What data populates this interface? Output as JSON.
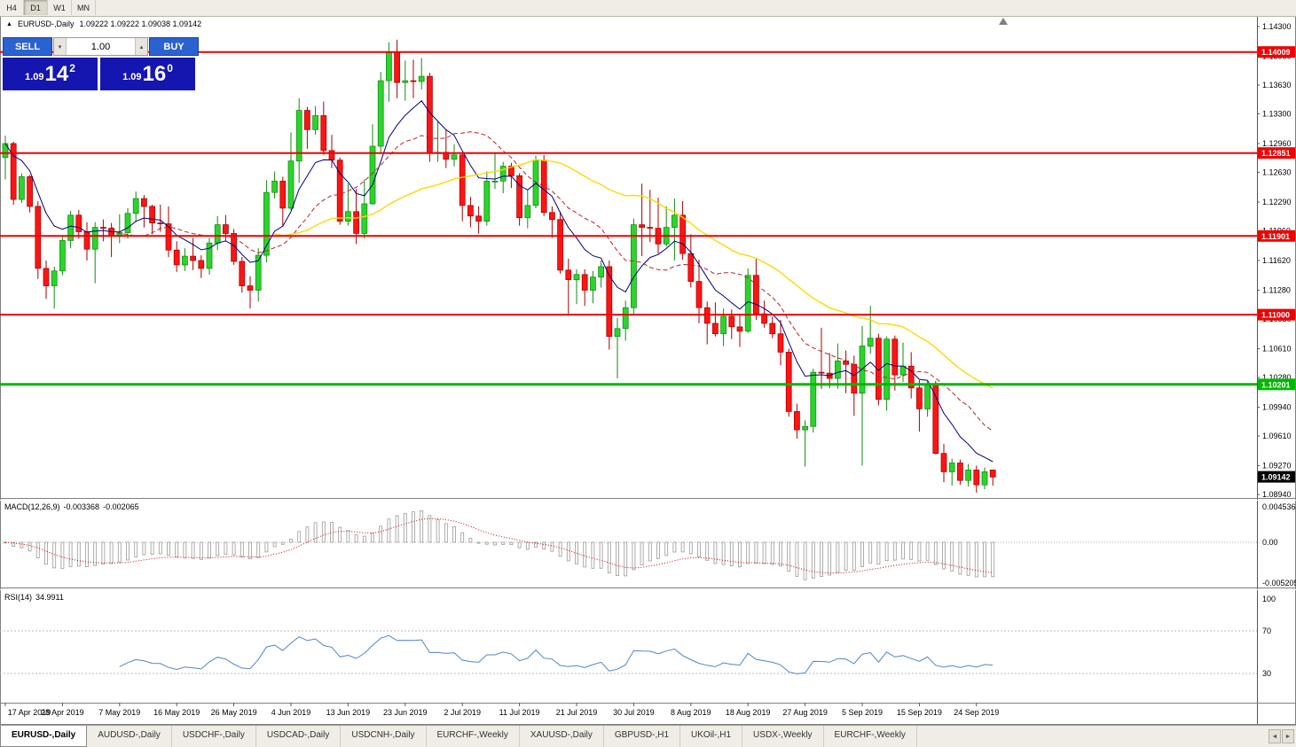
{
  "toolbar": {
    "timeframes": [
      "H4",
      "D1",
      "W1",
      "MN"
    ],
    "active": "D1"
  },
  "chart": {
    "symbol_title": "EURUSD-,Daily",
    "ohlc_text": "1.09222 1.09222 1.09038 1.09142"
  },
  "trade_panel": {
    "sell_label": "SELL",
    "buy_label": "BUY",
    "volume": "1.00",
    "sell_price": {
      "base": "1.09",
      "pips": "14",
      "frac": "2"
    },
    "buy_price": {
      "base": "1.09",
      "pips": "16",
      "frac": "0"
    },
    "icons": {
      "volume_down": "▾",
      "volume_up": "▴"
    }
  },
  "macd_panel": {
    "name": "MACD(12,26,9)",
    "main_value": "-0.003368",
    "signal_value": "-0.002065",
    "axis": [
      {
        "label": "0.004536",
        "value": 0.004536
      },
      {
        "label": "0.00",
        "value": 0
      },
      {
        "label": "-0.005205",
        "value": -0.005205
      }
    ]
  },
  "rsi_panel": {
    "name": "RSI(14)",
    "value": "34.9911",
    "axis": [
      {
        "label": "100",
        "value": 100
      },
      {
        "label": "70",
        "value": 70
      },
      {
        "label": "30",
        "value": 30
      }
    ],
    "levels": [
      70,
      30
    ]
  },
  "tabs": {
    "items": [
      "EURUSD-,Daily",
      "AUDUSD-,Daily",
      "USDCHF-,Daily",
      "USDCAD-,Daily",
      "USDCNH-,Daily",
      "EURCHF-,Weekly",
      "XAUUSD-,Daily",
      "GBPUSD-,H1",
      "UKOil-,H1",
      "USDX-,Weekly",
      "EURCHF-,Weekly"
    ],
    "active_index": 0,
    "scroll_icons": [
      "◄",
      "►"
    ]
  },
  "chart_data": {
    "type": "candlestick",
    "symbol": "EURUSD-",
    "timeframe": "Daily",
    "ylim": [
      1.0894,
      1.143
    ],
    "y_ticks": [
      "1.14300",
      "1.13960",
      "1.13630",
      "1.13300",
      "1.12960",
      "1.12630",
      "1.12290",
      "1.11960",
      "1.11620",
      "1.11280",
      "1.10950",
      "1.10610",
      "1.10280",
      "1.09940",
      "1.09610",
      "1.09270",
      "1.08940"
    ],
    "x_labels": [
      "17 Apr 2019",
      "28 Apr 2019",
      "7 May 2019",
      "16 May 2019",
      "26 May 2019",
      "4 Jun 2019",
      "13 Jun 2019",
      "23 Jun 2019",
      "2 Jul 2019",
      "11 Jul 2019",
      "21 Jul 2019",
      "30 Jul 2019",
      "8 Aug 2019",
      "18 Aug 2019",
      "27 Aug 2019",
      "5 Sep 2019",
      "15 Sep 2019",
      "24 Sep 2019"
    ],
    "x_label_indices": [
      0,
      7,
      14,
      21,
      28,
      35,
      42,
      49,
      56,
      63,
      70,
      77,
      84,
      91,
      98,
      105,
      112,
      119
    ],
    "hlines": [
      {
        "price": 1.14009,
        "label": "1.14009",
        "color": "#f00000",
        "width": 2
      },
      {
        "price": 1.12851,
        "label": "1.12851",
        "color": "#f00000",
        "width": 2
      },
      {
        "price": 1.11901,
        "label": "1.11901",
        "color": "#f00000",
        "width": 2
      },
      {
        "price": 1.11,
        "label": "1.11000",
        "color": "#f00000",
        "width": 2
      },
      {
        "price": 1.10201,
        "label": "1.10201",
        "color": "#00b800",
        "width": 3
      }
    ],
    "last_price": {
      "value": 1.09142,
      "label": "1.09142"
    },
    "colors": {
      "up": "#2ad52a",
      "up_border": "#128a12",
      "down": "#ff1414",
      "down_border": "#a80000",
      "ma_fast": "#000080",
      "ma_mid": "#c02020",
      "ma_slow": "#ffd800",
      "macd_hist": "#999999",
      "macd_signal": "#d40000",
      "rsi": "#4f86c6"
    },
    "moving_averages": [
      {
        "period": 8,
        "type": "ema",
        "role": "fast"
      },
      {
        "period": 14,
        "type": "sma",
        "role": "mid"
      },
      {
        "period": 34,
        "type": "sma",
        "role": "slow"
      }
    ],
    "macd_params": [
      12,
      26,
      9
    ],
    "rsi_period": 14,
    "ohlc": [
      [
        1.128,
        1.1305,
        1.1255,
        1.1296
      ],
      [
        1.1296,
        1.1298,
        1.1226,
        1.1232
      ],
      [
        1.1232,
        1.1262,
        1.1228,
        1.1258
      ],
      [
        1.1258,
        1.126,
        1.1217,
        1.1224
      ],
      [
        1.1224,
        1.123,
        1.1141,
        1.1153
      ],
      [
        1.1153,
        1.1162,
        1.1118,
        1.1133
      ],
      [
        1.1133,
        1.1155,
        1.1107,
        1.115
      ],
      [
        1.115,
        1.119,
        1.1145,
        1.1185
      ],
      [
        1.1185,
        1.1219,
        1.1176,
        1.1214
      ],
      [
        1.1214,
        1.122,
        1.1187,
        1.1195
      ],
      [
        1.1195,
        1.1206,
        1.1162,
        1.1175
      ],
      [
        1.1175,
        1.1206,
        1.1136,
        1.12
      ],
      [
        1.12,
        1.1209,
        1.1184,
        1.1199
      ],
      [
        1.1199,
        1.1205,
        1.1166,
        1.119
      ],
      [
        1.119,
        1.1215,
        1.1182,
        1.1194
      ],
      [
        1.1194,
        1.1222,
        1.1187,
        1.1216
      ],
      [
        1.1216,
        1.1241,
        1.1206,
        1.1233
      ],
      [
        1.1233,
        1.1237,
        1.12,
        1.1224
      ],
      [
        1.1224,
        1.1226,
        1.1192,
        1.1205
      ],
      [
        1.1205,
        1.1226,
        1.1195,
        1.1204
      ],
      [
        1.1204,
        1.1224,
        1.1166,
        1.1174
      ],
      [
        1.1174,
        1.1184,
        1.1149,
        1.1157
      ],
      [
        1.1157,
        1.1176,
        1.115,
        1.1167
      ],
      [
        1.1167,
        1.1188,
        1.1151,
        1.1162
      ],
      [
        1.1162,
        1.1168,
        1.1142,
        1.1153
      ],
      [
        1.1153,
        1.1188,
        1.1146,
        1.1182
      ],
      [
        1.1182,
        1.1213,
        1.1174,
        1.1203
      ],
      [
        1.1203,
        1.1214,
        1.1184,
        1.1193
      ],
      [
        1.1193,
        1.1198,
        1.1157,
        1.1161
      ],
      [
        1.1161,
        1.1166,
        1.1125,
        1.1133
      ],
      [
        1.1133,
        1.1144,
        1.1107,
        1.1128
      ],
      [
        1.1128,
        1.1176,
        1.1115,
        1.1168
      ],
      [
        1.1168,
        1.1254,
        1.116,
        1.124
      ],
      [
        1.124,
        1.1264,
        1.1233,
        1.1253
      ],
      [
        1.1253,
        1.1258,
        1.1201,
        1.1222
      ],
      [
        1.1222,
        1.1309,
        1.122,
        1.1276
      ],
      [
        1.1276,
        1.1348,
        1.1251,
        1.1334
      ],
      [
        1.1334,
        1.1338,
        1.129,
        1.1312
      ],
      [
        1.1312,
        1.1339,
        1.1306,
        1.1328
      ],
      [
        1.1328,
        1.1344,
        1.1283,
        1.1288
      ],
      [
        1.1288,
        1.1306,
        1.1268,
        1.1277
      ],
      [
        1.1277,
        1.128,
        1.1203,
        1.1207
      ],
      [
        1.1207,
        1.125,
        1.1202,
        1.1218
      ],
      [
        1.1218,
        1.1244,
        1.1181,
        1.1193
      ],
      [
        1.1193,
        1.1255,
        1.1187,
        1.1227
      ],
      [
        1.1227,
        1.1318,
        1.1226,
        1.1293
      ],
      [
        1.1293,
        1.1378,
        1.1285,
        1.1368
      ],
      [
        1.1368,
        1.1412,
        1.1344,
        1.14
      ],
      [
        1.14,
        1.1415,
        1.1348,
        1.1366
      ],
      [
        1.1366,
        1.1391,
        1.1345,
        1.1368
      ],
      [
        1.1368,
        1.1392,
        1.1348,
        1.1367
      ],
      [
        1.1367,
        1.1394,
        1.1358,
        1.1373
      ],
      [
        1.1373,
        1.1377,
        1.1275,
        1.1285
      ],
      [
        1.1285,
        1.1322,
        1.1275,
        1.1286
      ],
      [
        1.1286,
        1.1312,
        1.1268,
        1.1278
      ],
      [
        1.1278,
        1.1295,
        1.127,
        1.1283
      ],
      [
        1.1283,
        1.1286,
        1.1207,
        1.1225
      ],
      [
        1.1225,
        1.1235,
        1.12,
        1.1213
      ],
      [
        1.1213,
        1.1224,
        1.1193,
        1.1207
      ],
      [
        1.1207,
        1.1264,
        1.1202,
        1.1253
      ],
      [
        1.1253,
        1.1285,
        1.1244,
        1.1253
      ],
      [
        1.1253,
        1.1275,
        1.1239,
        1.127
      ],
      [
        1.127,
        1.1274,
        1.1245,
        1.1259
      ],
      [
        1.1259,
        1.1262,
        1.1202,
        1.1211
      ],
      [
        1.1211,
        1.1243,
        1.1199,
        1.1225
      ],
      [
        1.1225,
        1.1282,
        1.1222,
        1.1277
      ],
      [
        1.1277,
        1.1283,
        1.1213,
        1.1217
      ],
      [
        1.1217,
        1.1224,
        1.1188,
        1.1209
      ],
      [
        1.1209,
        1.1218,
        1.1147,
        1.1151
      ],
      [
        1.1151,
        1.1164,
        1.1101,
        1.114
      ],
      [
        1.114,
        1.1152,
        1.1112,
        1.1146
      ],
      [
        1.1146,
        1.1152,
        1.111,
        1.1128
      ],
      [
        1.1128,
        1.115,
        1.1113,
        1.1143
      ],
      [
        1.1143,
        1.1162,
        1.1131,
        1.1155
      ],
      [
        1.1155,
        1.1162,
        1.106,
        1.1075
      ],
      [
        1.1075,
        1.1096,
        1.1027,
        1.1084
      ],
      [
        1.1084,
        1.1116,
        1.107,
        1.1108
      ],
      [
        1.1108,
        1.121,
        1.1101,
        1.1203
      ],
      [
        1.1203,
        1.125,
        1.1167,
        1.12
      ],
      [
        1.12,
        1.1243,
        1.1183,
        1.1199
      ],
      [
        1.1199,
        1.1234,
        1.117,
        1.1181
      ],
      [
        1.1181,
        1.1224,
        1.1178,
        1.12
      ],
      [
        1.12,
        1.1233,
        1.1162,
        1.1214
      ],
      [
        1.1214,
        1.123,
        1.1163,
        1.117
      ],
      [
        1.117,
        1.1192,
        1.1131,
        1.1138
      ],
      [
        1.1138,
        1.1163,
        1.109,
        1.1108
      ],
      [
        1.1108,
        1.1115,
        1.1066,
        1.109
      ],
      [
        1.109,
        1.1114,
        1.1075,
        1.1078
      ],
      [
        1.1078,
        1.1107,
        1.1064,
        1.1098
      ],
      [
        1.1098,
        1.1106,
        1.1072,
        1.1086
      ],
      [
        1.1086,
        1.11,
        1.1063,
        1.1081
      ],
      [
        1.1081,
        1.1153,
        1.1079,
        1.1145
      ],
      [
        1.1145,
        1.1164,
        1.1094,
        1.1101
      ],
      [
        1.1101,
        1.1116,
        1.1085,
        1.109
      ],
      [
        1.109,
        1.1098,
        1.1073,
        1.1078
      ],
      [
        1.1078,
        1.1094,
        1.1042,
        1.1057
      ],
      [
        1.1057,
        1.1061,
        1.0983,
        1.0989
      ],
      [
        1.0989,
        1.0998,
        1.0958,
        1.0968
      ],
      [
        1.0968,
        1.0979,
        1.0926,
        1.0972
      ],
      [
        1.0972,
        1.1038,
        1.0965,
        1.1034
      ],
      [
        1.1034,
        1.1085,
        1.1015,
        1.1033
      ],
      [
        1.1033,
        1.1056,
        1.1016,
        1.1027
      ],
      [
        1.1027,
        1.1067,
        1.1015,
        1.1047
      ],
      [
        1.1047,
        1.1059,
        1.101,
        1.1043
      ],
      [
        1.1043,
        1.1053,
        1.0984,
        1.101
      ],
      [
        1.101,
        1.1087,
        1.0927,
        1.1064
      ],
      [
        1.1064,
        1.111,
        1.1055,
        1.1073
      ],
      [
        1.1073,
        1.1078,
        1.0996,
        1.1003
      ],
      [
        1.1003,
        1.1075,
        1.099,
        1.1072
      ],
      [
        1.1072,
        1.1076,
        1.1013,
        1.1031
      ],
      [
        1.1031,
        1.1068,
        1.1023,
        1.1041
      ],
      [
        1.1041,
        1.1057,
        1.1004,
        1.1016
      ],
      [
        1.1016,
        1.1025,
        1.0966,
        1.0992
      ],
      [
        1.0992,
        1.1024,
        1.0983,
        1.1021
      ],
      [
        1.1021,
        1.1024,
        1.094,
        1.0941
      ],
      [
        1.0941,
        1.0952,
        1.0908,
        1.092
      ],
      [
        1.092,
        1.0935,
        1.0904,
        1.093
      ],
      [
        1.093,
        1.0934,
        1.0905,
        1.091
      ],
      [
        1.091,
        1.0929,
        1.0903,
        1.0922
      ],
      [
        1.0922,
        1.0927,
        1.0896,
        1.0905
      ],
      [
        1.0905,
        1.0925,
        1.09,
        1.092
      ],
      [
        1.0922,
        1.0922,
        1.0904,
        1.0914
      ]
    ]
  }
}
